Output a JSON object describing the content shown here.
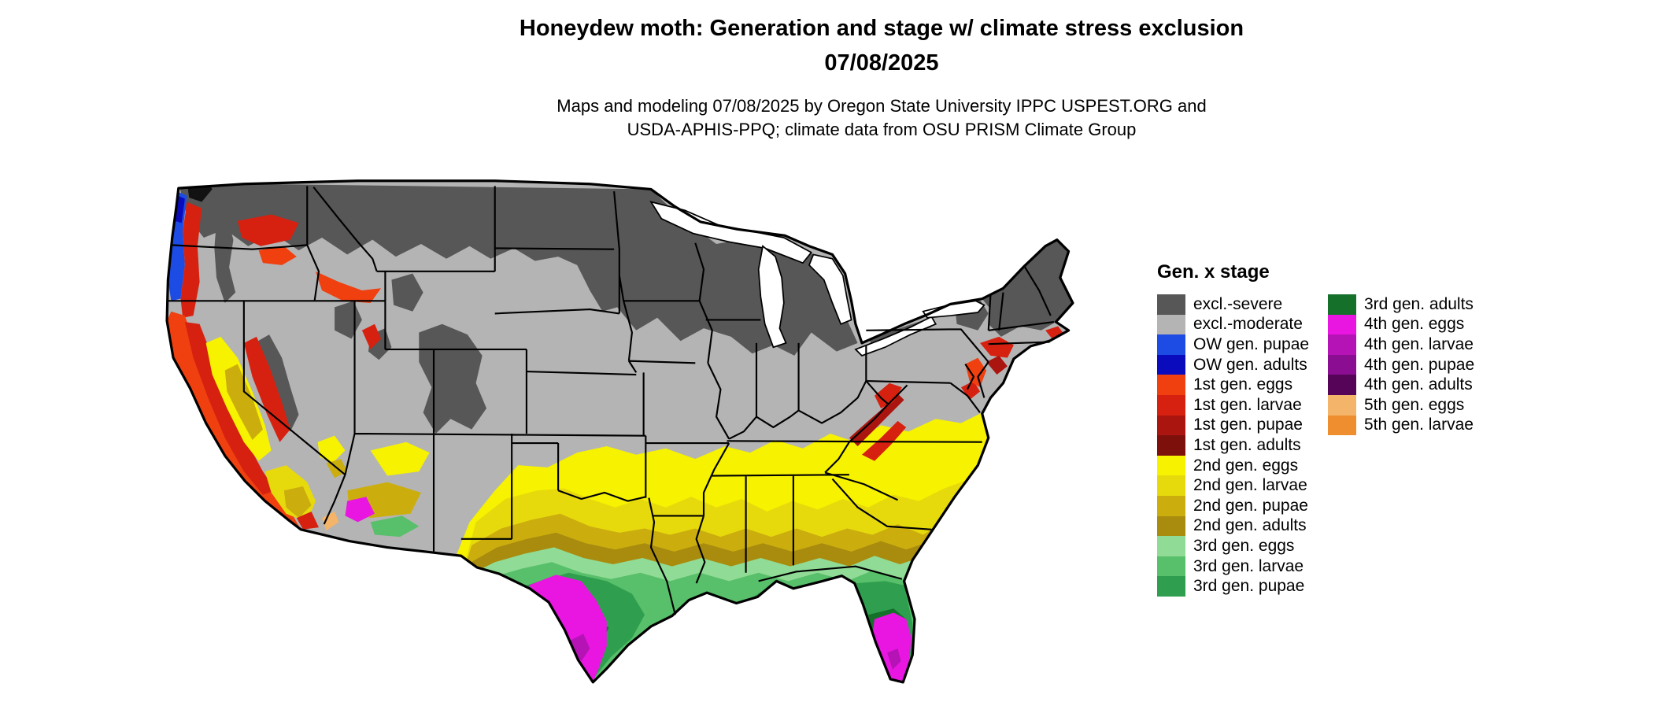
{
  "title": {
    "line1": "Honeydew moth: Generation and stage w/ climate stress exclusion",
    "line2": "07/08/2025"
  },
  "subtitle": {
    "line1": "Maps and modeling 07/08/2025 by Oregon State University IPPC USPEST.ORG and",
    "line2": "USDA-APHIS-PPQ; climate data from OSU PRISM Climate Group"
  },
  "map": {
    "description": "Contiguous United States map shaded by honeydew moth generation and life stage with climate stress exclusion zones",
    "background_color": "#ffffff",
    "outline_color": "#000000"
  },
  "legend": {
    "header": "Gen. x stage",
    "columns": [
      {
        "items": [
          {
            "key": "excl_severe",
            "label": "excl.-severe",
            "color": "#575757"
          },
          {
            "key": "excl_moderate",
            "label": "excl.-moderate",
            "color": "#b4b4b4"
          },
          {
            "key": "ow_pupae",
            "label": "OW gen. pupae",
            "color": "#1d4ce4"
          },
          {
            "key": "ow_adults",
            "label": "OW gen. adults",
            "color": "#0b0bbe"
          },
          {
            "key": "g1_eggs",
            "label": "1st gen. eggs",
            "color": "#f04010"
          },
          {
            "key": "g1_larvae",
            "label": "1st gen. larvae",
            "color": "#d62110"
          },
          {
            "key": "g1_pupae",
            "label": "1st gen. pupae",
            "color": "#aa1510"
          },
          {
            "key": "g1_adults",
            "label": "1st gen. adults",
            "color": "#7e100c"
          },
          {
            "key": "g2_eggs",
            "label": "2nd gen. eggs",
            "color": "#f6f200"
          },
          {
            "key": "g2_larvae",
            "label": "2nd gen. larvae",
            "color": "#e7da0c"
          },
          {
            "key": "g2_pupae",
            "label": "2nd gen. pupae",
            "color": "#cbae0e"
          },
          {
            "key": "g2_adults",
            "label": "2nd gen. adults",
            "color": "#a98b0e"
          },
          {
            "key": "g3_eggs",
            "label": "3rd gen. eggs",
            "color": "#90dc96"
          },
          {
            "key": "g3_larvae",
            "label": "3rd gen. larvae",
            "color": "#58bf6a"
          },
          {
            "key": "g3_pupae",
            "label": "3rd gen. pupae",
            "color": "#2f9e4e"
          }
        ]
      },
      {
        "items": [
          {
            "key": "g3_adults",
            "label": "3rd gen. adults",
            "color": "#15702a"
          },
          {
            "key": "g4_eggs",
            "label": "4th gen. eggs",
            "color": "#e816e0"
          },
          {
            "key": "g4_larvae",
            "label": "4th gen. larvae",
            "color": "#b513b5"
          },
          {
            "key": "g4_pupae",
            "label": "4th gen. pupae",
            "color": "#8a0d92"
          },
          {
            "key": "g4_adults",
            "label": "4th gen. adults",
            "color": "#560457"
          },
          {
            "key": "g5_eggs",
            "label": "5th gen. eggs",
            "color": "#f4b469"
          },
          {
            "key": "g5_larvae",
            "label": "5th gen. larvae",
            "color": "#ef8e2e"
          }
        ]
      }
    ]
  }
}
